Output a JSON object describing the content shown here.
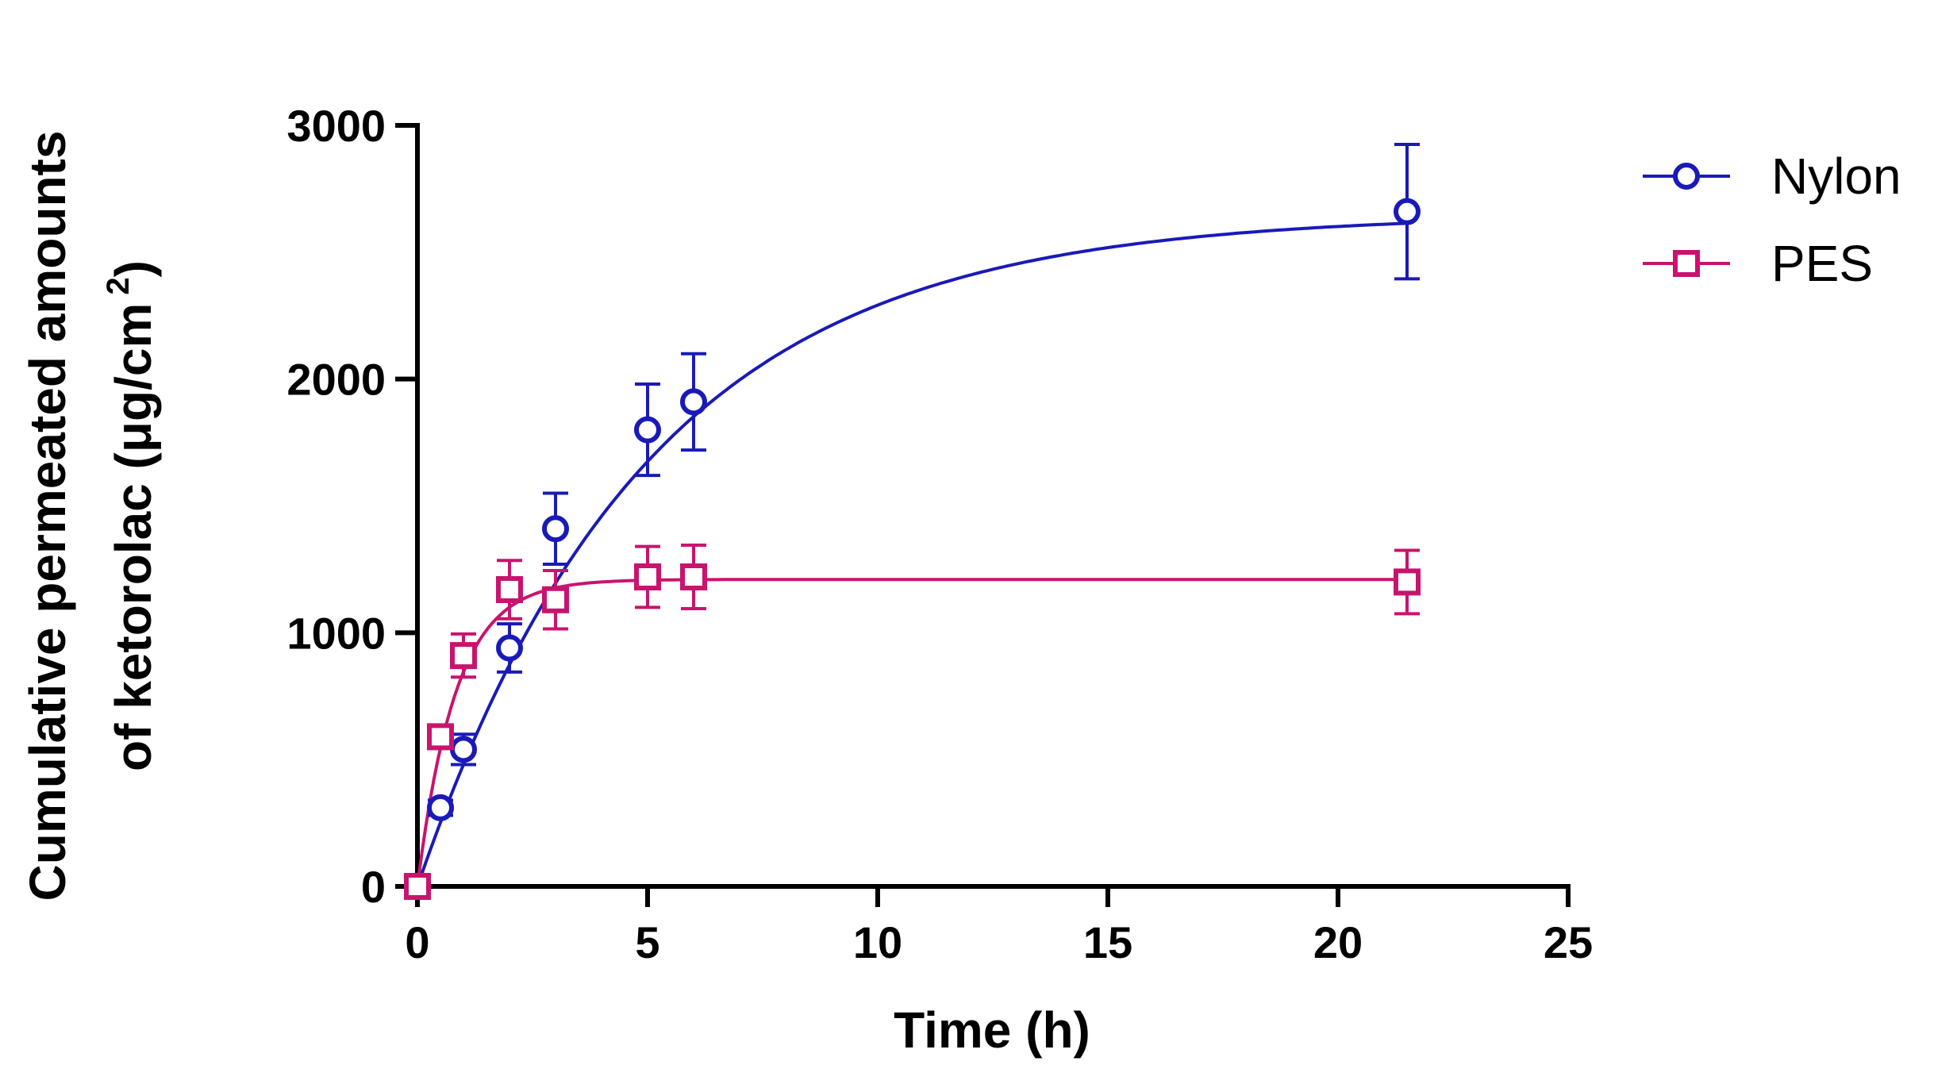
{
  "chart_data": {
    "type": "scatter",
    "title": "",
    "xlabel": "Time (h)",
    "ylabel_line1": "Cumulative permeated amounts",
    "ylabel_line2_main": "of ketorolac (μg/cm",
    "ylabel_line2_sup": "2",
    "ylabel_line2_end": ")",
    "xlim": [
      0,
      25
    ],
    "ylim": [
      0,
      3000
    ],
    "xticks": [
      0,
      5,
      10,
      15,
      20,
      25
    ],
    "yticks": [
      0,
      1000,
      2000,
      3000
    ],
    "xtick_labels": [
      "0",
      "5",
      "10",
      "15",
      "20",
      "25"
    ],
    "ytick_labels": [
      "0",
      "1000",
      "2000",
      "3000"
    ],
    "legend_position": "top-right",
    "series": [
      {
        "name": "Nylon",
        "color": "#1a1ab8",
        "marker": "circle",
        "x": [
          0,
          0.5,
          1,
          2,
          3,
          5,
          6,
          21.5
        ],
        "y": [
          0,
          310,
          540,
          940,
          1410,
          1800,
          1910,
          2660
        ],
        "err": [
          0,
          30,
          60,
          95,
          140,
          180,
          190,
          265
        ],
        "fit": {
          "model": "one-phase-association",
          "ymax": 2650,
          "k": 0.2
        }
      },
      {
        "name": "PES",
        "color": "#c8146e",
        "marker": "square",
        "x": [
          0,
          0.5,
          1,
          2,
          3,
          5,
          6,
          21.5
        ],
        "y": [
          0,
          590,
          910,
          1170,
          1130,
          1220,
          1220,
          1200
        ],
        "err": [
          0,
          25,
          85,
          115,
          115,
          120,
          125,
          125
        ],
        "fit": {
          "model": "one-phase-association",
          "ymax": 1210,
          "k": 1.2
        }
      }
    ]
  }
}
